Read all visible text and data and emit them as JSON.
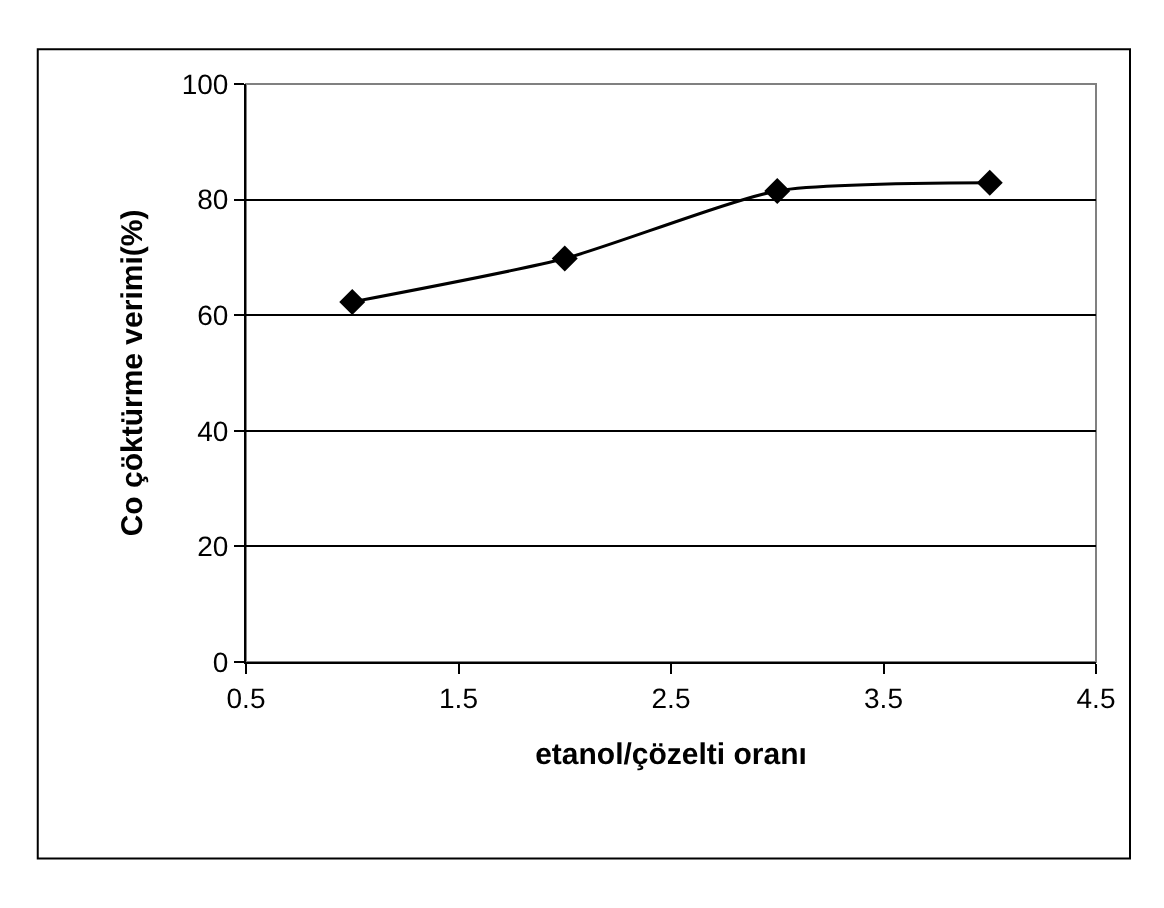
{
  "chart_data": {
    "type": "line",
    "xlabel": "etanol/çözelti oranı",
    "ylabel": "Co çöktürme verimi(%)",
    "x": [
      1,
      2,
      3,
      4
    ],
    "series": [
      {
        "color": "#000000",
        "values": [
          62.3,
          69.8,
          81.5,
          82.9
        ]
      }
    ],
    "xlim": [
      0.5,
      4.5
    ],
    "xticks": [
      0.5,
      1.5,
      2.5,
      3.5,
      4.5
    ],
    "ylim": [
      0,
      100
    ],
    "yticks": [
      0,
      20,
      40,
      60,
      80,
      100
    ],
    "grid": "y",
    "legend": false,
    "marker": "diamond",
    "line_style": "solid"
  }
}
